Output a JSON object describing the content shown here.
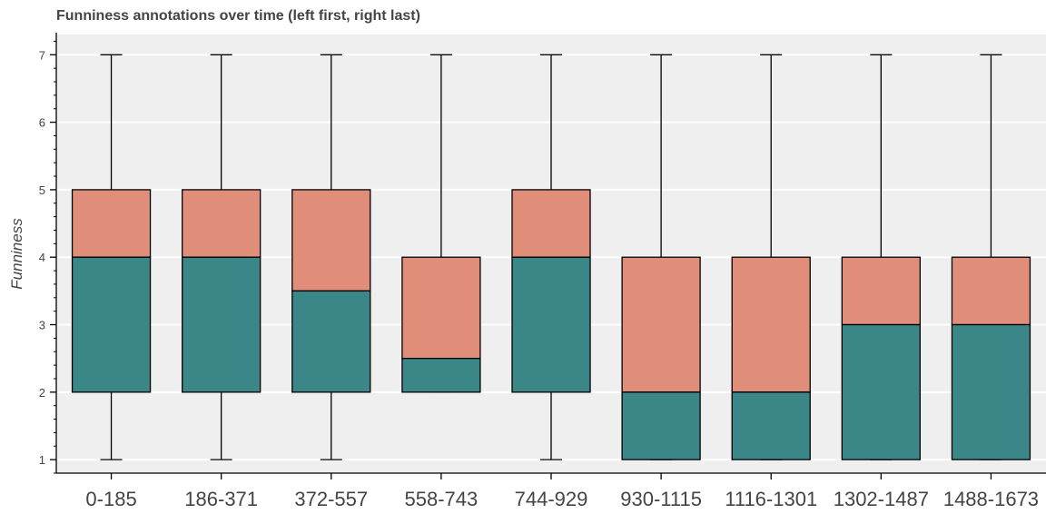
{
  "chart_data": {
    "type": "box",
    "title": "Funniness annotations over time (left first, right last)",
    "xlabel": "",
    "ylabel": "Funniness",
    "ylim": [
      0.8,
      7.3
    ],
    "yticks": [
      1,
      2,
      3,
      4,
      5,
      6,
      7
    ],
    "grid": true,
    "legend": "none",
    "colors": {
      "upper_box": "#e08e79",
      "lower_box": "#3b8686",
      "plot_background": "#efefef",
      "grid": "#ffffff",
      "outline": "#000000"
    },
    "categories": [
      "0-185",
      "186-371",
      "372-557",
      "558-743",
      "744-929",
      "930-1115",
      "1116-1301",
      "1302-1487",
      "1488-1673"
    ],
    "boxes": [
      {
        "category": "0-185",
        "lower_whisker": 1,
        "q1": 2,
        "median": 4,
        "q3": 5,
        "upper_whisker": 7
      },
      {
        "category": "186-371",
        "lower_whisker": 1,
        "q1": 2,
        "median": 4,
        "q3": 5,
        "upper_whisker": 7
      },
      {
        "category": "372-557",
        "lower_whisker": 1,
        "q1": 2,
        "median": 3.5,
        "q3": 5,
        "upper_whisker": 7
      },
      {
        "category": "558-743",
        "lower_whisker": 2,
        "q1": 2,
        "median": 2.5,
        "q3": 4,
        "upper_whisker": 7
      },
      {
        "category": "744-929",
        "lower_whisker": 1,
        "q1": 2,
        "median": 4,
        "q3": 5,
        "upper_whisker": 7
      },
      {
        "category": "930-1115",
        "lower_whisker": 1,
        "q1": 1,
        "median": 2,
        "q3": 4,
        "upper_whisker": 7
      },
      {
        "category": "1116-1301",
        "lower_whisker": 1,
        "q1": 1,
        "median": 2,
        "q3": 4,
        "upper_whisker": 7
      },
      {
        "category": "1302-1487",
        "lower_whisker": 1,
        "q1": 1,
        "median": 3,
        "q3": 4,
        "upper_whisker": 7
      },
      {
        "category": "1488-1673",
        "lower_whisker": 1,
        "q1": 1,
        "median": 3,
        "q3": 4,
        "upper_whisker": 7
      }
    ]
  }
}
